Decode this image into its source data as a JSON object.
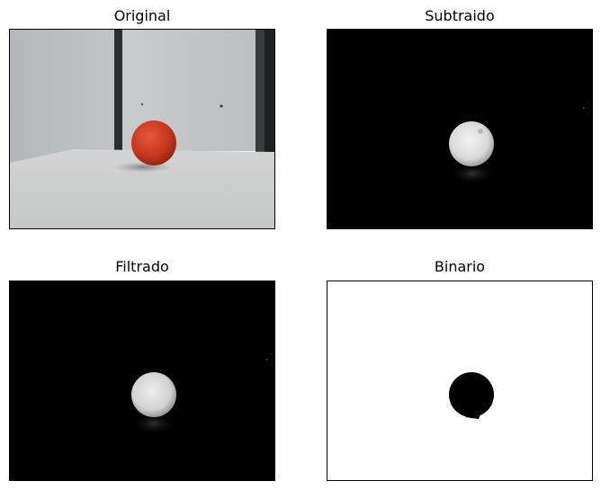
{
  "figure": {
    "panels": [
      {
        "id": "original",
        "title": "Original"
      },
      {
        "id": "subtraido",
        "title": "Subtraido"
      },
      {
        "id": "filtrado",
        "title": "Filtrado"
      },
      {
        "id": "binario",
        "title": "Binario"
      }
    ]
  },
  "colors": {
    "background": "#ffffff",
    "frame": "#000000",
    "ball_red": "#c8381f",
    "wall": "#b9bcbd",
    "table": "#d6d7d6",
    "mask_white": "#ffffff",
    "mask_black": "#000000"
  }
}
